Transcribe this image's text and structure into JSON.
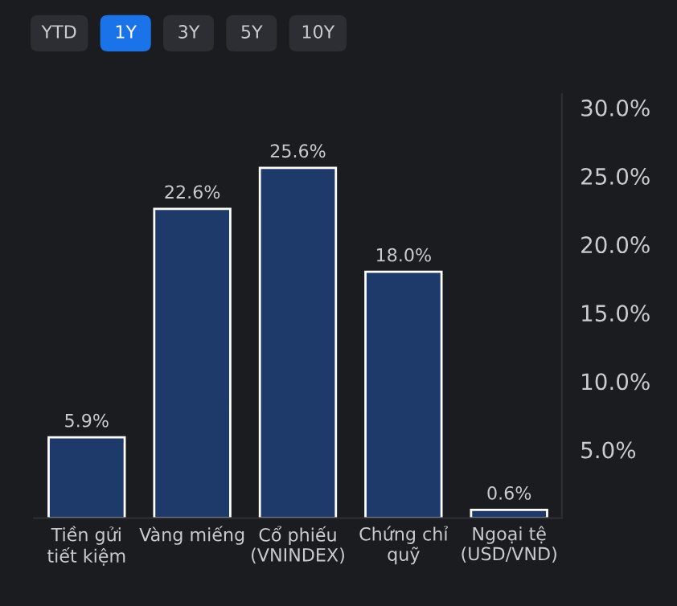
{
  "chart_data": {
    "type": "bar",
    "categories": [
      "Tiền gửi\ntiết kiệm",
      "Vàng miếng",
      "Cổ phiếu\n(VNINDEX)",
      "Chứng chỉ\nquỹ",
      "Ngoại tệ\n(USD/VND)"
    ],
    "values": [
      5.9,
      22.6,
      25.6,
      18.0,
      0.6
    ],
    "value_labels": [
      "5.9%",
      "22.6%",
      "25.6%",
      "18.0%",
      "0.6%"
    ],
    "color": "#1d3a6b",
    "ylim": [
      0,
      31
    ],
    "yticks": [
      {
        "value": 5,
        "label": "5.0%"
      },
      {
        "value": 10,
        "label": "10.0%"
      },
      {
        "value": 15,
        "label": "15.0%"
      },
      {
        "value": 20,
        "label": "20.0%"
      },
      {
        "value": 25,
        "label": "25.0%"
      },
      {
        "value": 30,
        "label": "30.0%"
      }
    ],
    "annotations": [
      "YTD",
      "1Y",
      "3Y",
      "5Y",
      "10Y"
    ],
    "grid": false,
    "legend": false
  }
}
